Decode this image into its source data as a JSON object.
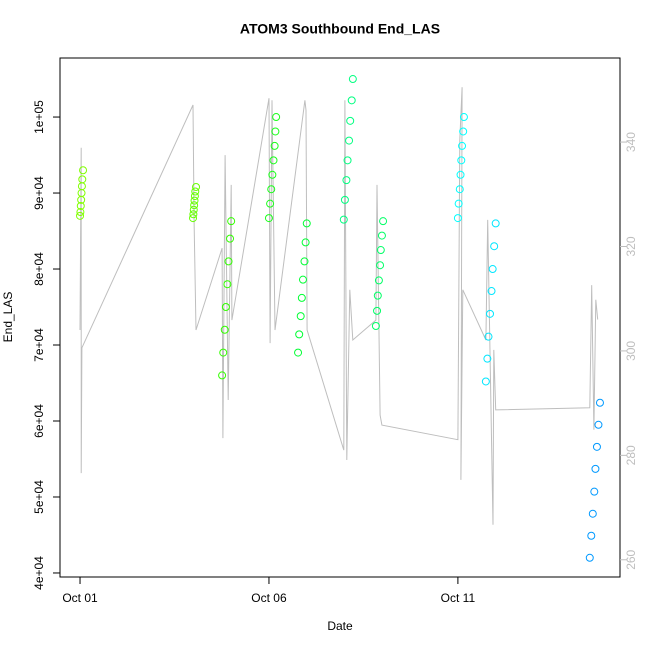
{
  "chart_data": {
    "type": "scatter",
    "title": "ATOM3 Southbound End_LAS",
    "x_label": "Date",
    "y_label": "End_LAS",
    "xlim": [
      -0.53,
      14.29
    ],
    "xticks": [
      {
        "value": 0,
        "label": "Oct 01"
      },
      {
        "value": 5,
        "label": "Oct 06"
      },
      {
        "value": 10,
        "label": "Oct 11"
      }
    ],
    "ylim": [
      39470,
      107770
    ],
    "yticks": [
      {
        "value": 40000,
        "label": "4e+04"
      },
      {
        "value": 50000,
        "label": "5e+04"
      },
      {
        "value": 60000,
        "label": "6e+04"
      },
      {
        "value": 70000,
        "label": "7e+04"
      },
      {
        "value": 80000,
        "label": "8e+04"
      },
      {
        "value": 90000,
        "label": "9e+04"
      },
      {
        "value": 100000,
        "label": "1e+05"
      }
    ],
    "y2lim": [
      256.7,
      356.1
    ],
    "y2ticks": [
      260,
      280,
      300,
      320,
      340
    ],
    "y2_color": "#bebebe",
    "grid": false,
    "series": [
      {
        "type": "line",
        "axis": "y2",
        "color": "#bebebe",
        "x": [
          0,
          0.03,
          0.03,
          0.05,
          2.99,
          3.02,
          3.07,
          3.76,
          3.78,
          3.84,
          3.92,
          4.0,
          4.02,
          5.0,
          5.03,
          5.08,
          5.16,
          5.95,
          5.98,
          6.01,
          6.98,
          7.01,
          7.06,
          7.14,
          7.22,
          7.83,
          7.86,
          7.94,
          7.99,
          10.0,
          10.05,
          10.11,
          10.08,
          10.13,
          10.74,
          10.79,
          10.93,
          10.95,
          11.0,
          13.49,
          13.54,
          13.6,
          13.65,
          13.7
        ],
        "values": [
          304.0,
          338.9,
          276.6,
          300.6,
          347.1,
          324.7,
          304.0,
          319.7,
          283.3,
          337.5,
          290.6,
          331.8,
          305.9,
          348.4,
          301.5,
          348.0,
          304.0,
          348.0,
          346.1,
          304.0,
          281.0,
          348.0,
          279.1,
          311.7,
          302.1,
          305.9,
          331.8,
          287.7,
          285.8,
          283.0,
          340.4,
          350.5,
          275.3,
          311.7,
          302.1,
          325.1,
          266.7,
          300.2,
          288.7,
          289.1,
          312.6,
          284.9,
          309.8,
          306.0
        ]
      },
      {
        "type": "scatter",
        "color": "#80ff00",
        "x": [
          0,
          0.01,
          0.02,
          0.03,
          0.04,
          0.05,
          0.06,
          0.08
        ],
        "values": [
          87000,
          87500,
          88300,
          89100,
          90000,
          90900,
          91800,
          93000
        ]
      },
      {
        "type": "scatter",
        "color": "#66ff00",
        "x": [
          2.99,
          3.0,
          3.01,
          3.02,
          3.03,
          3.04,
          3.05,
          3.07
        ],
        "values": [
          86700,
          87200,
          87800,
          88400,
          89000,
          89600,
          90200,
          90800
        ]
      },
      {
        "type": "scatter",
        "color": "#33ff00",
        "x": [
          3.76,
          3.79,
          3.83,
          3.86,
          3.9,
          3.93,
          3.97,
          4.0
        ],
        "values": [
          66000,
          69000,
          72000,
          75000,
          78000,
          81000,
          84000,
          86300
        ]
      },
      {
        "type": "scatter",
        "color": "#1aff1a",
        "x": [
          5.0,
          5.03,
          5.06,
          5.09,
          5.12,
          5.15,
          5.17,
          5.19
        ],
        "values": [
          86700,
          88600,
          90500,
          92400,
          94300,
          96200,
          98100,
          100000
        ]
      },
      {
        "type": "scatter",
        "color": "#00ff33",
        "x": [
          5.77,
          5.8,
          5.84,
          5.87,
          5.9,
          5.94,
          5.97,
          6.0
        ],
        "values": [
          69000,
          71400,
          73800,
          76200,
          78600,
          81000,
          83500,
          86000
        ]
      },
      {
        "type": "scatter",
        "color": "#00ff80",
        "x": [
          6.98,
          7.01,
          7.05,
          7.08,
          7.12,
          7.15,
          7.19,
          7.22
        ],
        "values": [
          86500,
          89100,
          91700,
          94300,
          96900,
          99500,
          102200,
          105000
        ]
      },
      {
        "type": "scatter",
        "color": "#00ff66",
        "x": [
          7.83,
          7.86,
          7.88,
          7.91,
          7.94,
          7.96,
          7.99,
          8.02
        ],
        "values": [
          72500,
          74500,
          76500,
          78500,
          80500,
          82500,
          84400,
          86300
        ]
      },
      {
        "type": "scatter",
        "color": "#00ffff",
        "x": [
          10.0,
          10.02,
          10.05,
          10.07,
          10.09,
          10.11,
          10.14,
          10.16
        ],
        "values": [
          86700,
          88600,
          90500,
          92400,
          94300,
          96200,
          98100,
          100000
        ]
      },
      {
        "type": "scatter",
        "color": "#00e6ff",
        "x": [
          10.74,
          10.78,
          10.81,
          10.85,
          10.89,
          10.92,
          10.96,
          11.0
        ],
        "values": [
          65200,
          68200,
          71100,
          74100,
          77100,
          80000,
          83000,
          86000
        ]
      },
      {
        "type": "scatter",
        "color": "#0099ff",
        "x": [
          13.49,
          13.53,
          13.57,
          13.61,
          13.64,
          13.68,
          13.72,
          13.76
        ],
        "values": [
          42000,
          44900,
          47800,
          50700,
          53700,
          56600,
          59500,
          62400
        ]
      }
    ]
  }
}
